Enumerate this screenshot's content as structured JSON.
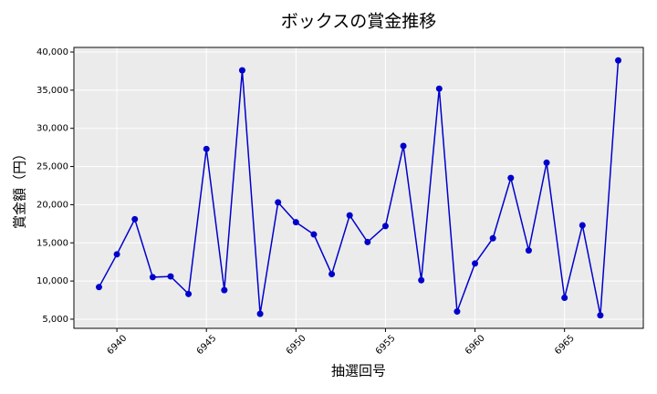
{
  "chart_data": {
    "type": "line",
    "title": "ボックスの賞金推移",
    "x_label": "抽選回号",
    "y_label": "賞金額（円）",
    "x": [
      6939,
      6940,
      6941,
      6942,
      6943,
      6944,
      6945,
      6946,
      6947,
      6948,
      6949,
      6950,
      6951,
      6952,
      6953,
      6954,
      6955,
      6956,
      6957,
      6958,
      6959,
      6960,
      6961,
      6962,
      6963,
      6964,
      6965,
      6966,
      6967,
      6968
    ],
    "series": [
      {
        "name": "賞金",
        "color": "#0000cc",
        "values": [
          9200,
          13500,
          18100,
          10500,
          10600,
          8300,
          27300,
          8800,
          37600,
          5700,
          20300,
          17700,
          16100,
          10900,
          18600,
          15100,
          17200,
          27700,
          10100,
          35200,
          6000,
          12300,
          15600,
          23500,
          14000,
          25500,
          7800,
          17300,
          5500,
          38900
        ]
      }
    ],
    "xlim": [
      6937.6,
      6969.4
    ],
    "xticks": [
      6940,
      6945,
      6950,
      6955,
      6960,
      6965
    ],
    "ylim": [
      3800,
      40600
    ],
    "yticks": [
      {
        "value": 5000,
        "label": "5,000"
      },
      {
        "value": 10000,
        "label": "10,000"
      },
      {
        "value": 15000,
        "label": "15,000"
      },
      {
        "value": 20000,
        "label": "20,000"
      },
      {
        "value": 25000,
        "label": "25,000"
      },
      {
        "value": 30000,
        "label": "30,000"
      },
      {
        "value": 35000,
        "label": "35,000"
      },
      {
        "value": 40000,
        "label": "40,000"
      }
    ],
    "grid": true
  }
}
